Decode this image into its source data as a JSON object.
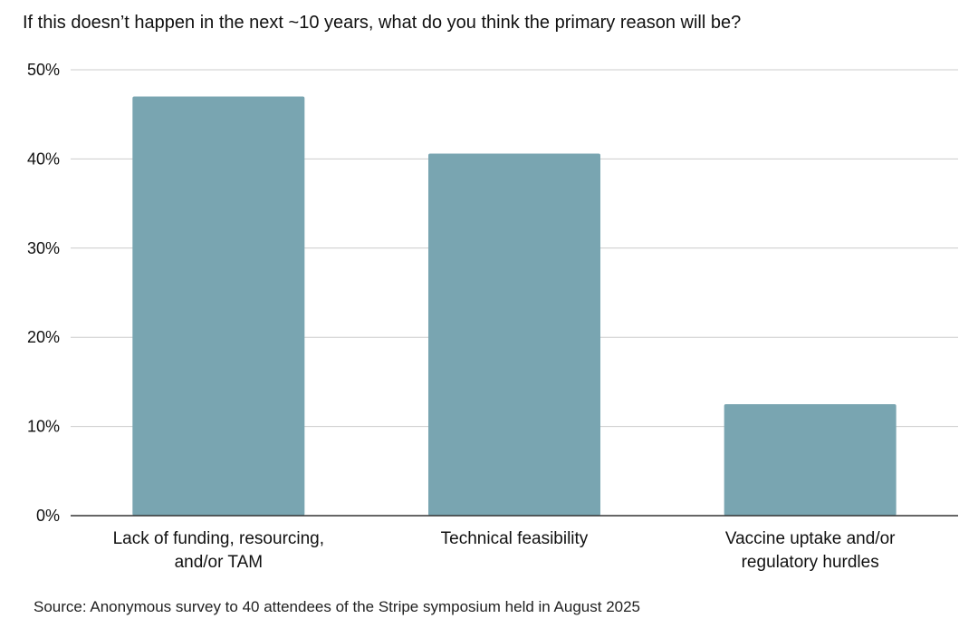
{
  "chart_data": {
    "type": "bar",
    "title": "If this doesn’t happen in the next ~10 years, what do you think the primary reason will be?",
    "categories": [
      [
        "Lack of funding, resourcing,",
        "and/or TAM"
      ],
      [
        "Technical feasibility"
      ],
      [
        "Vaccine uptake and/or",
        "regulatory hurdles"
      ]
    ],
    "values": [
      47,
      40.6,
      12.5
    ],
    "y_ticks": [
      "0%",
      "10%",
      "20%",
      "30%",
      "40%",
      "50%"
    ],
    "ylim": [
      0,
      50
    ],
    "xlabel": "",
    "ylabel": "",
    "grid": true,
    "bar_color": "#79a5b1",
    "grid_color": "#cccccc",
    "axis_color": "#333333"
  },
  "source": "Source: Anonymous survey to 40 attendees of the Stripe symposium held in August 2025"
}
